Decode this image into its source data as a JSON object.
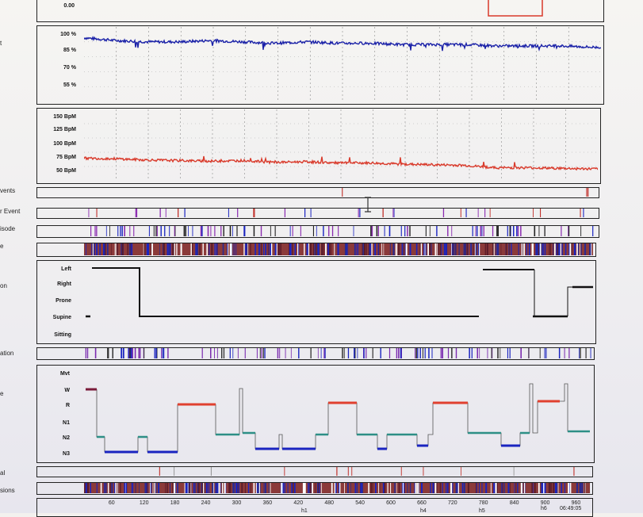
{
  "side_labels": [
    "t",
    "vents",
    "r Event",
    "isode",
    "e",
    "on",
    "ation",
    "e",
    "al",
    "sions"
  ],
  "top_panel": {
    "value_label": "0.00"
  },
  "spo2_panel": {
    "y_labels": [
      "100 %",
      "85 %",
      "70 %",
      "55 %"
    ],
    "color": "#1b22a8"
  },
  "pulse_panel": {
    "y_labels": [
      "150 BpM",
      "125 BpM",
      "100 BpM",
      "75 BpM",
      "50 BpM"
    ],
    "color": "#d93a2b"
  },
  "position_panel": {
    "y_labels": [
      "Left",
      "Right",
      "Prone",
      "Supine",
      "Sitting"
    ]
  },
  "hypnogram_panel": {
    "y_labels": [
      "Mvt",
      "W",
      "R",
      "N1",
      "N2",
      "N3"
    ]
  },
  "time_axis": {
    "ticks": [
      "60",
      "120",
      "180",
      "240",
      "300",
      "360",
      "420",
      "480",
      "540",
      "600",
      "660",
      "720",
      "780",
      "840",
      "900",
      "960"
    ],
    "sub_labels": [
      "h1",
      "h4",
      "h5",
      "h6"
    ],
    "end_time": "06:49:05"
  },
  "chart_data": {
    "type": "line",
    "x_unit": "minutes",
    "xlim": [
      0,
      975
    ],
    "series": [
      {
        "values_x": [
          0,
          60,
          120,
          180,
          240,
          300,
          360,
          420,
          480,
          540,
          600,
          660,
          720,
          780,
          840,
          900,
          960
        ],
        "values_y": [
          97,
          95,
          94,
          94,
          95,
          94,
          93,
          94,
          93,
          93,
          92,
          92,
          92,
          91,
          91,
          91,
          90
        ],
        "ylim": [
          50,
          105
        ]
      },
      {
        "values_x": [
          0,
          60,
          120,
          180,
          240,
          300,
          360,
          420,
          480,
          540,
          600,
          660,
          720,
          780,
          840,
          900,
          960
        ],
        "values_y": [
          78,
          77,
          75,
          74,
          73,
          74,
          71,
          72,
          70,
          70,
          68,
          67,
          66,
          62,
          62,
          61,
          60
        ],
        "ylim": [
          40,
          160
        ]
      }
    ]
  }
}
